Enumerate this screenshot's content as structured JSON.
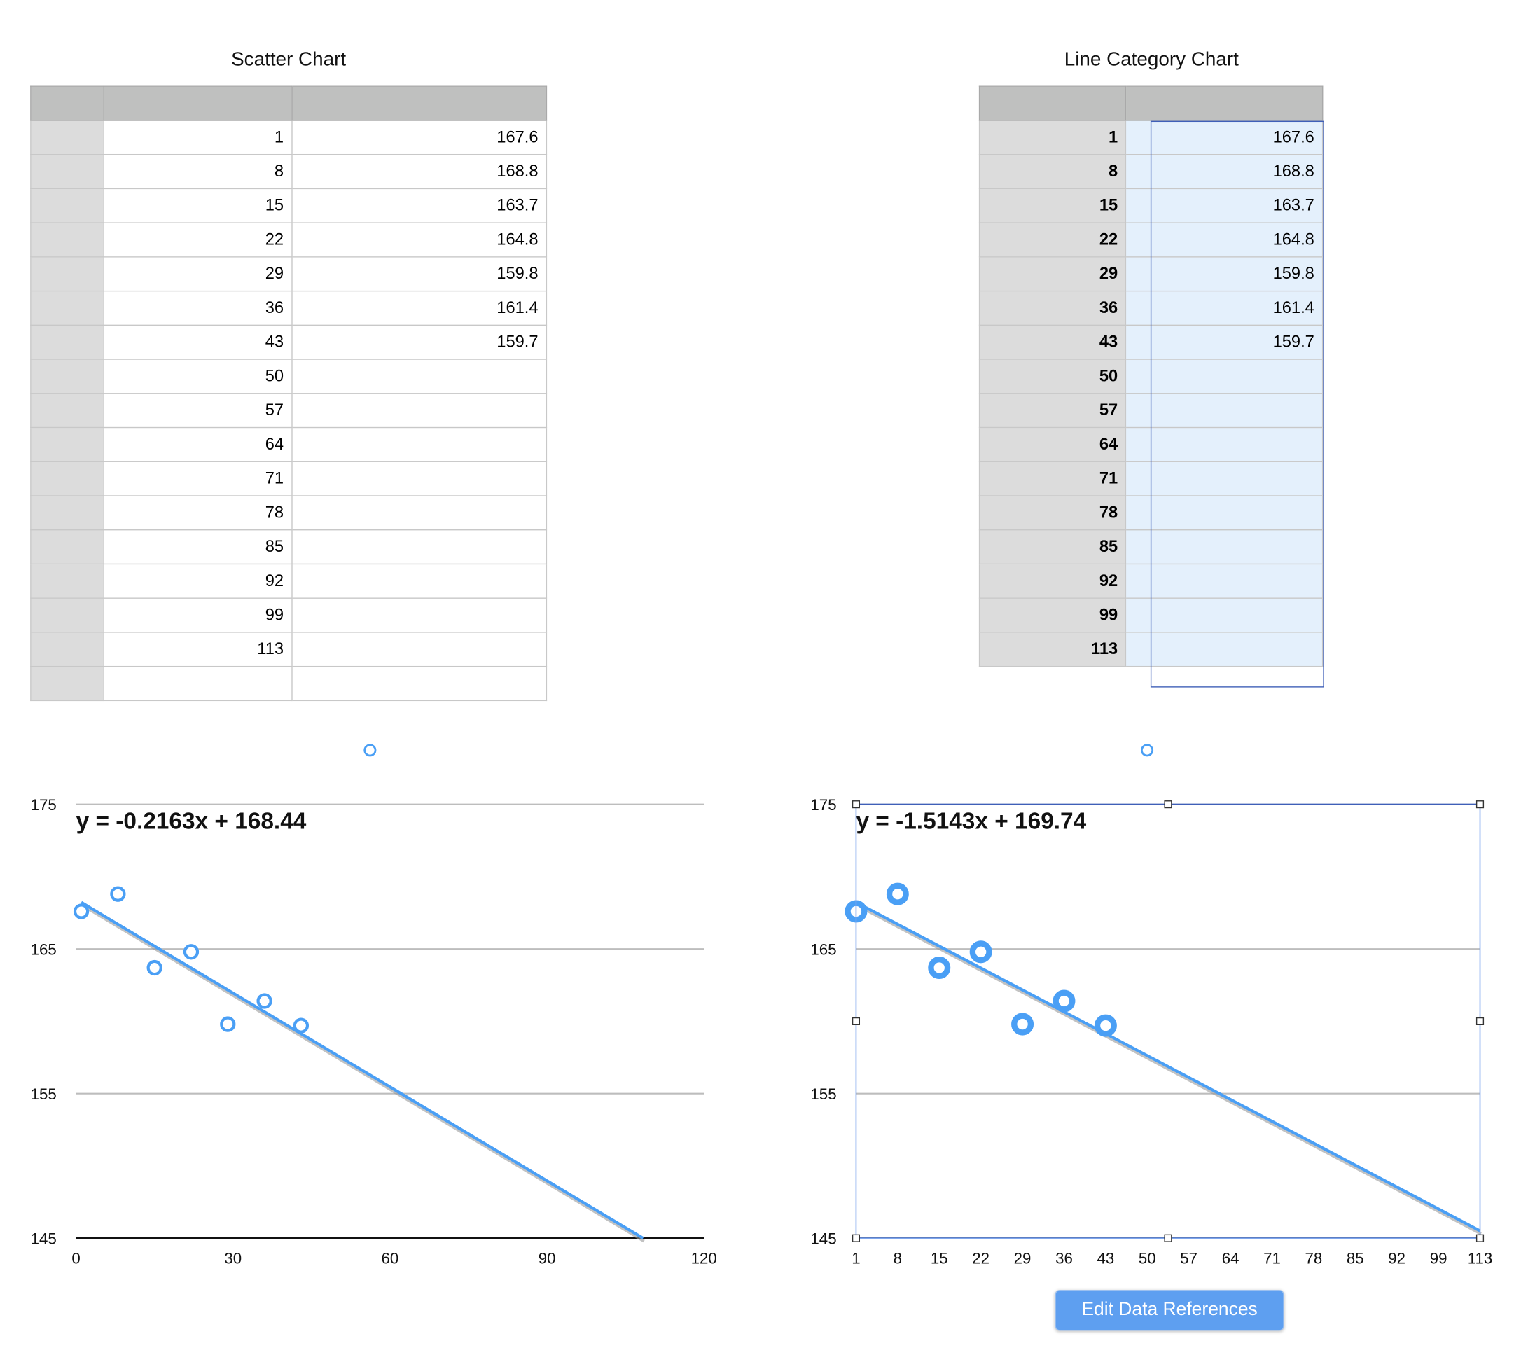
{
  "left_table": {
    "title": "Scatter Chart",
    "rows": [
      [
        "1",
        "167.6"
      ],
      [
        "8",
        "168.8"
      ],
      [
        "15",
        "163.7"
      ],
      [
        "22",
        "164.8"
      ],
      [
        "29",
        "159.8"
      ],
      [
        "36",
        "161.4"
      ],
      [
        "43",
        "159.7"
      ],
      [
        "50",
        ""
      ],
      [
        "57",
        ""
      ],
      [
        "64",
        ""
      ],
      [
        "71",
        ""
      ],
      [
        "78",
        ""
      ],
      [
        "85",
        ""
      ],
      [
        "92",
        ""
      ],
      [
        "99",
        ""
      ],
      [
        "113",
        ""
      ],
      [
        "",
        ""
      ]
    ]
  },
  "right_table": {
    "title": "Line Category Chart",
    "rows": [
      [
        "1",
        "167.6"
      ],
      [
        "8",
        "168.8"
      ],
      [
        "15",
        "163.7"
      ],
      [
        "22",
        "164.8"
      ],
      [
        "29",
        "159.8"
      ],
      [
        "36",
        "161.4"
      ],
      [
        "43",
        "159.7"
      ],
      [
        "50",
        ""
      ],
      [
        "57",
        ""
      ],
      [
        "64",
        ""
      ],
      [
        "71",
        ""
      ],
      [
        "78",
        ""
      ],
      [
        "85",
        ""
      ],
      [
        "92",
        ""
      ],
      [
        "99",
        ""
      ],
      [
        "113",
        ""
      ]
    ]
  },
  "edit_button_label": "Edit Data References",
  "colors": {
    "series": "#4a9ff5",
    "selection": "#3f5fb8"
  },
  "chart_data": [
    {
      "type": "scatter",
      "title": "Scatter Chart",
      "x": [
        1,
        8,
        15,
        22,
        29,
        36,
        43
      ],
      "y": [
        167.6,
        168.8,
        163.7,
        164.8,
        159.8,
        161.4,
        159.7
      ],
      "xlim": [
        0,
        120
      ],
      "ylim": [
        145,
        175
      ],
      "xticks": [
        "0",
        "30",
        "60",
        "90",
        "120"
      ],
      "yticks": [
        "145",
        "155",
        "165",
        "175"
      ],
      "trendline": {
        "slope": -0.2163,
        "intercept": 168.44,
        "label": "y = -0.2163x + 168.44"
      },
      "grid": true
    },
    {
      "type": "line",
      "title": "Line Category Chart",
      "categories": [
        "1",
        "8",
        "15",
        "22",
        "29",
        "36",
        "43",
        "50",
        "57",
        "64",
        "71",
        "78",
        "85",
        "92",
        "99",
        "113"
      ],
      "values": [
        167.6,
        168.8,
        163.7,
        164.8,
        159.8,
        161.4,
        159.7,
        null,
        null,
        null,
        null,
        null,
        null,
        null,
        null,
        null
      ],
      "ylim": [
        145,
        175
      ],
      "yticks": [
        "145",
        "155",
        "165",
        "175"
      ],
      "trendline": {
        "slope": -1.5143,
        "intercept": 169.74,
        "label": "y = -1.5143x + 169.74"
      },
      "grid": true
    }
  ]
}
